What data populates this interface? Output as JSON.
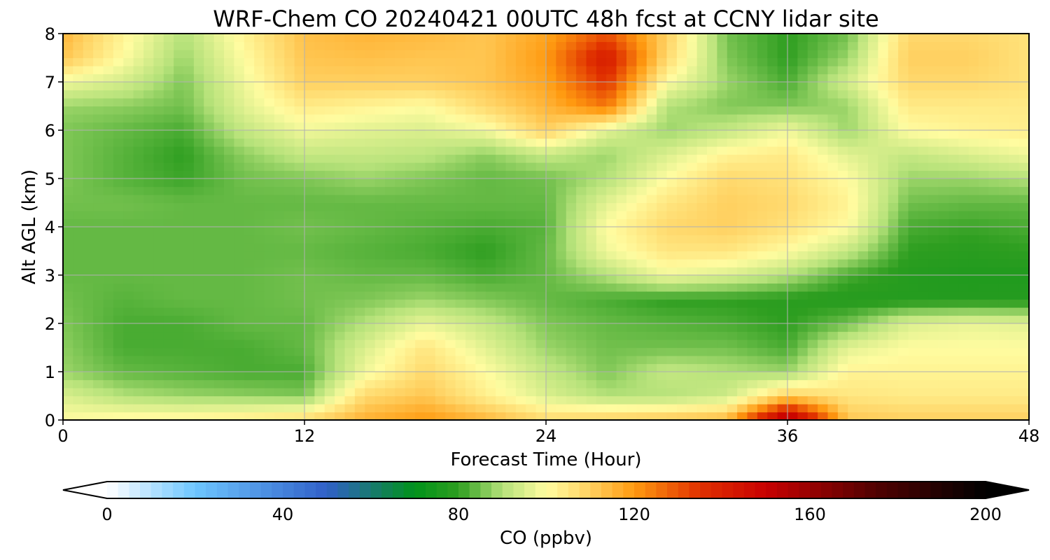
{
  "chart_data": {
    "type": "heatmap",
    "title": "WRF-Chem CO  20240421 00UTC 48h fcst at CCNY lidar site",
    "xlabel": "Forecast Time (Hour)",
    "ylabel": "Alt AGL (km)",
    "xlim": [
      0,
      48
    ],
    "ylim": [
      0,
      8
    ],
    "x_ticks": [
      "0",
      "12",
      "24",
      "36",
      "48"
    ],
    "y_ticks": [
      "0",
      "1",
      "2",
      "3",
      "4",
      "5",
      "6",
      "7",
      "8"
    ],
    "grid": true,
    "x": [
      0,
      3,
      6,
      9,
      12,
      15,
      18,
      21,
      24,
      27,
      30,
      33,
      36,
      39,
      42,
      45,
      48
    ],
    "y": [
      0,
      0.5,
      1,
      1.5,
      2,
      2.5,
      3,
      3.5,
      4,
      4.5,
      5,
      5.5,
      6,
      6.5,
      7,
      7.5,
      8
    ],
    "z": [
      [
        100,
        102,
        103,
        105,
        108,
        116,
        120,
        115,
        108,
        110,
        112,
        115,
        160,
        112,
        110,
        110,
        110
      ],
      [
        95,
        90,
        88,
        87,
        86,
        108,
        112,
        103,
        95,
        90,
        90,
        93,
        110,
        105,
        104,
        104,
        104
      ],
      [
        88,
        84,
        83,
        82,
        82,
        98,
        108,
        100,
        92,
        86,
        92,
        90,
        88,
        102,
        102,
        102,
        102
      ],
      [
        87,
        82,
        82,
        82,
        84,
        95,
        105,
        96,
        88,
        85,
        85,
        85,
        82,
        96,
        100,
        100,
        100
      ],
      [
        86,
        82,
        82,
        84,
        84,
        90,
        97,
        92,
        86,
        84,
        83,
        82,
        80,
        85,
        95,
        97,
        96
      ],
      [
        85,
        83,
        84,
        84,
        85,
        86,
        88,
        86,
        84,
        82,
        80,
        80,
        79,
        78,
        78,
        78,
        78
      ],
      [
        84,
        84,
        84,
        84,
        85,
        84,
        84,
        82,
        84,
        90,
        98,
        95,
        90,
        82,
        78,
        77,
        77
      ],
      [
        84,
        84,
        84,
        84,
        84,
        83,
        82,
        80,
        84,
        98,
        105,
        105,
        100,
        92,
        80,
        79,
        80
      ],
      [
        84,
        84,
        84,
        84,
        85,
        84,
        83,
        82,
        83,
        100,
        108,
        110,
        106,
        100,
        82,
        81,
        82
      ],
      [
        85,
        85,
        84,
        84,
        84,
        84,
        84,
        84,
        84,
        96,
        105,
        110,
        108,
        102,
        85,
        84,
        84
      ],
      [
        86,
        83,
        81,
        85,
        86,
        88,
        86,
        84,
        85,
        90,
        100,
        108,
        106,
        100,
        88,
        88,
        90
      ],
      [
        86,
        83,
        80,
        87,
        92,
        92,
        91,
        87,
        92,
        88,
        95,
        102,
        104,
        96,
        92,
        95,
        98
      ],
      [
        86,
        84,
        82,
        92,
        98,
        96,
        95,
        98,
        110,
        96,
        88,
        92,
        98,
        88,
        100,
        102,
        103
      ],
      [
        88,
        87,
        85,
        96,
        104,
        102,
        100,
        108,
        115,
        125,
        90,
        86,
        86,
        88,
        104,
        104,
        104
      ],
      [
        98,
        94,
        86,
        98,
        110,
        110,
        110,
        112,
        118,
        135,
        100,
        88,
        82,
        94,
        108,
        108,
        106
      ],
      [
        112,
        100,
        88,
        100,
        112,
        113,
        112,
        112,
        120,
        142,
        108,
        86,
        80,
        88,
        110,
        110,
        106
      ],
      [
        115,
        102,
        90,
        102,
        113,
        115,
        114,
        112,
        118,
        130,
        110,
        85,
        80,
        85,
        108,
        108,
        106
      ]
    ],
    "colorbar": {
      "label": "CO  (ppbv)",
      "min": 0,
      "max": 200,
      "ticks": [
        "0",
        "40",
        "80",
        "120",
        "160",
        "200"
      ],
      "extend": "both",
      "colormap_stops": [
        {
          "v": 0,
          "c": "#ffffff"
        },
        {
          "v": 20,
          "c": "#6ec6ff"
        },
        {
          "v": 50,
          "c": "#3060c8"
        },
        {
          "v": 70,
          "c": "#00921a"
        },
        {
          "v": 80,
          "c": "#2e9e20"
        },
        {
          "v": 90,
          "c": "#b6e27a"
        },
        {
          "v": 100,
          "c": "#fffca0"
        },
        {
          "v": 110,
          "c": "#ffd060"
        },
        {
          "v": 120,
          "c": "#ff9a10"
        },
        {
          "v": 135,
          "c": "#e03000"
        },
        {
          "v": 150,
          "c": "#c80000"
        },
        {
          "v": 175,
          "c": "#500000"
        },
        {
          "v": 200,
          "c": "#000000"
        }
      ]
    }
  }
}
